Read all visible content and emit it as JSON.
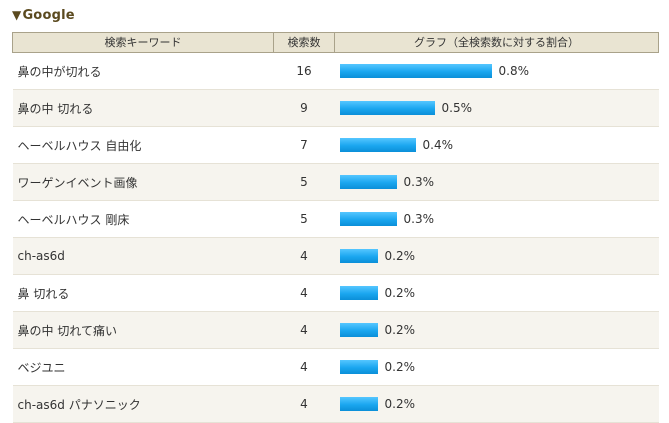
{
  "section": {
    "title": "Google"
  },
  "table": {
    "headers": {
      "keyword": "検索キーワード",
      "count": "検索数",
      "graph": "グラフ（全検索数に対する割合）"
    },
    "rows": [
      {
        "keyword": "鼻の中が切れる",
        "count": "16",
        "share": "0.8%",
        "share_value": 0.8
      },
      {
        "keyword": "鼻の中 切れる",
        "count": "9",
        "share": "0.5%",
        "share_value": 0.5
      },
      {
        "keyword": "ヘーベルハウス 自由化",
        "count": "7",
        "share": "0.4%",
        "share_value": 0.4
      },
      {
        "keyword": "ワーゲンイベント画像",
        "count": "5",
        "share": "0.3%",
        "share_value": 0.3
      },
      {
        "keyword": "ヘーベルハウス 剛床",
        "count": "5",
        "share": "0.3%",
        "share_value": 0.3
      },
      {
        "keyword": "ch-as6d",
        "count": "4",
        "share": "0.2%",
        "share_value": 0.2
      },
      {
        "keyword": "鼻 切れる",
        "count": "4",
        "share": "0.2%",
        "share_value": 0.2
      },
      {
        "keyword": "鼻の中 切れて痛い",
        "count": "4",
        "share": "0.2%",
        "share_value": 0.2
      },
      {
        "keyword": "ベジユニ",
        "count": "4",
        "share": "0.2%",
        "share_value": 0.2
      },
      {
        "keyword": "ch-as6d パナソニック",
        "count": "4",
        "share": "0.2%",
        "share_value": 0.2
      }
    ]
  },
  "colors": {
    "bar": "#1aa6ef",
    "header_bg": "#e9e4d2",
    "title": "#5b4a1f"
  }
}
